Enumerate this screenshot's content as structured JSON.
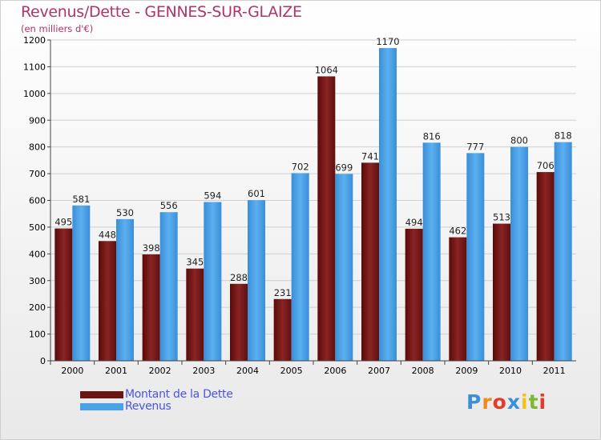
{
  "chart_data": {
    "type": "bar",
    "title": "Revenus/Dette - GENNES-SUR-GLAIZE",
    "subtitle": "(en milliers d'€)",
    "categories": [
      "2000",
      "2001",
      "2002",
      "2003",
      "2004",
      "2005",
      "2006",
      "2007",
      "2008",
      "2009",
      "2010",
      "2011"
    ],
    "series": [
      {
        "name": "Montant de la Dette",
        "color": "#7a1a1a",
        "values": [
          495,
          448,
          398,
          345,
          288,
          231,
          1064,
          741,
          494,
          462,
          513,
          706
        ]
      },
      {
        "name": "Revenus",
        "color": "#4aa2e8",
        "values": [
          581,
          530,
          556,
          594,
          601,
          702,
          699,
          1170,
          816,
          777,
          800,
          818
        ]
      }
    ],
    "ylim": [
      0,
      1200
    ],
    "yticks": [
      0,
      100,
      200,
      300,
      400,
      500,
      600,
      700,
      800,
      900,
      1000,
      1100,
      1200
    ],
    "grid": true,
    "legend_position": "bottom-left"
  },
  "logo": {
    "text": "Proxiti",
    "letters": [
      "P",
      "r",
      "o",
      "x",
      "i",
      "t",
      "i"
    ],
    "colors": [
      "#3a8fd6",
      "#f08a1c",
      "#e33b2a",
      "#3a8fd6",
      "#f2c21b",
      "#7ab934",
      "#e33b2a"
    ]
  }
}
